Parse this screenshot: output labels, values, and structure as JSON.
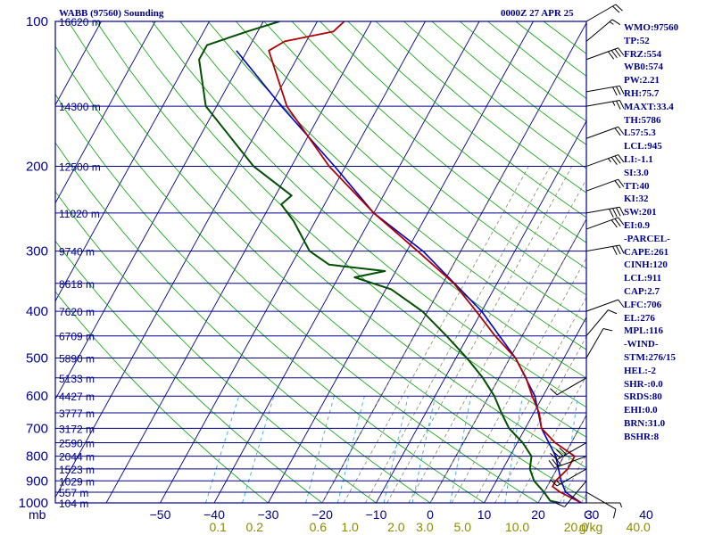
{
  "header": {
    "station_title": "WABB (97560) Sounding",
    "timestamp": "0000Z 27 APR 25"
  },
  "indices": [
    "WMO:97560",
    "TP:52",
    "FRZ:554",
    "WB0:574",
    "PW:2.21",
    "RH:75.7",
    "MAXT:33.4",
    "TH:5786",
    "L57:5.3",
    "LCL:945",
    "LI:-1.1",
    "SI:3.0",
    "TT:40",
    "KI:32",
    "SW:201",
    "EI:0.9",
    "-PARCEL-",
    "CAPE:261",
    "CINH:120",
    "LCL:911",
    "CAP:2.7",
    "LFC:706",
    "EL:276",
    "MPL:116",
    "-WIND-",
    "STM:276/15",
    "HEL:-2",
    "SHR-:0.0",
    "SRDS:80",
    "EHI:0.0",
    "BRN:31.0",
    "BSHR:8"
  ],
  "colors": {
    "frame": "#00008b",
    "isobar": "#00008b",
    "isotherm": "#00008b",
    "dry_adiabat": "#00a000",
    "moist_adiabat": "#888866",
    "mixing_ratio": "#33aadd",
    "temperature": "#b00000",
    "dewpoint": "#005000",
    "parcel": "#0000c8",
    "mixing_ratio_labels": "#8b8b00",
    "label": "#00008b"
  },
  "chart_data": {
    "type": "skew-t log-p",
    "pressure_unit": "mb",
    "mixing_ratio_unit": "g/kg",
    "pressure_levels": [
      100,
      150,
      200,
      250,
      300,
      350,
      400,
      450,
      500,
      550,
      600,
      650,
      700,
      750,
      800,
      850,
      900,
      950,
      1000
    ],
    "pressure_tick_labels": [
      "100",
      "200",
      "300",
      "400",
      "500",
      "600",
      "700",
      "800",
      "900",
      "1000"
    ],
    "height_labels": [
      {
        "p": 100,
        "label": "16620 m"
      },
      {
        "p": 150,
        "label": "14300 m"
      },
      {
        "p": 200,
        "label": "12500 m"
      },
      {
        "p": 250,
        "label": "11020 m"
      },
      {
        "p": 300,
        "label": "9740 m"
      },
      {
        "p": 350,
        "label": "8618 m"
      },
      {
        "p": 400,
        "label": "7620 m"
      },
      {
        "p": 450,
        "label": "6709 m"
      },
      {
        "p": 500,
        "label": "5890 m"
      },
      {
        "p": 550,
        "label": "5133 m"
      },
      {
        "p": 600,
        "label": "4427 m"
      },
      {
        "p": 650,
        "label": "3777 m"
      },
      {
        "p": 700,
        "label": "3172 m"
      },
      {
        "p": 750,
        "label": "2590 m"
      },
      {
        "p": 800,
        "label": "2044 m"
      },
      {
        "p": 850,
        "label": "1523 m"
      },
      {
        "p": 900,
        "label": "1029 m"
      },
      {
        "p": 950,
        "label": "557 m"
      },
      {
        "p": 1000,
        "label": "104 m"
      }
    ],
    "temperature_ticks": [
      -50,
      -40,
      -30,
      -20,
      -10,
      0,
      10,
      20,
      30,
      40
    ],
    "temperature_tick_labels": [
      "−50",
      "−40",
      "−30",
      "−20",
      "−10",
      "0",
      "10",
      "20",
      "30",
      "40"
    ],
    "temperature_axis_end": "C",
    "xlim": [
      -50,
      40
    ],
    "pressure_range": [
      100,
      1000
    ],
    "mixing_ratio_ticks": [
      0.1,
      0.2,
      0.6,
      1.0,
      2.0,
      3.0,
      5.0,
      10.0,
      20.0,
      40.0
    ],
    "mixing_ratio_tick_labels": [
      "0.1",
      "0.2",
      "0.6",
      "1.0",
      "2.0",
      "3.0",
      "5.0",
      "10.0",
      "20.0",
      "40.0"
    ],
    "temperature_profile": [
      [
        1000,
        28
      ],
      [
        950,
        23
      ],
      [
        925,
        21
      ],
      [
        900,
        21
      ],
      [
        850,
        22
      ],
      [
        800,
        22
      ],
      [
        750,
        17
      ],
      [
        700,
        13
      ],
      [
        650,
        11
      ],
      [
        600,
        8
      ],
      [
        550,
        5
      ],
      [
        500,
        1
      ],
      [
        450,
        -5
      ],
      [
        400,
        -11
      ],
      [
        350,
        -18
      ],
      [
        300,
        -28
      ],
      [
        250,
        -40
      ],
      [
        200,
        -53
      ],
      [
        150,
        -67
      ],
      [
        115,
        -76
      ],
      [
        110,
        -74
      ],
      [
        105,
        -66
      ],
      [
        100,
        -65
      ]
    ],
    "dewpoint_profile": [
      [
        1000,
        24
      ],
      [
        990,
        22
      ],
      [
        950,
        20
      ],
      [
        900,
        17
      ],
      [
        850,
        15
      ],
      [
        800,
        14
      ],
      [
        750,
        11
      ],
      [
        700,
        7
      ],
      [
        650,
        4
      ],
      [
        600,
        1
      ],
      [
        550,
        -3
      ],
      [
        500,
        -8
      ],
      [
        450,
        -14
      ],
      [
        400,
        -21
      ],
      [
        360,
        -29
      ],
      [
        340,
        -37
      ],
      [
        330,
        -32
      ],
      [
        320,
        -43
      ],
      [
        300,
        -48
      ],
      [
        260,
        -54
      ],
      [
        240,
        -58
      ],
      [
        230,
        -57
      ],
      [
        200,
        -67
      ],
      [
        150,
        -82
      ],
      [
        120,
        -88
      ],
      [
        112,
        -88
      ],
      [
        105,
        -82
      ],
      [
        100,
        -77
      ]
    ],
    "parcel_profile": [
      [
        1000,
        28
      ],
      [
        950,
        24
      ],
      [
        900,
        22
      ],
      [
        800,
        18.5
      ],
      [
        700,
        13
      ],
      [
        600,
        8.5
      ],
      [
        500,
        1
      ],
      [
        400,
        -10
      ],
      [
        300,
        -27
      ],
      [
        250,
        -40
      ],
      [
        200,
        -52
      ],
      [
        150,
        -68
      ],
      [
        115,
        -82
      ]
    ],
    "wind_barbs": [
      {
        "p": 100,
        "dir": 60,
        "spd": 20
      },
      {
        "p": 110,
        "dir": 50,
        "spd": 15
      },
      {
        "p": 120,
        "dir": 70,
        "spd": 40
      },
      {
        "p": 140,
        "dir": 80,
        "spd": 30
      },
      {
        "p": 150,
        "dir": 80,
        "spd": 25
      },
      {
        "p": 175,
        "dir": 70,
        "spd": 20
      },
      {
        "p": 200,
        "dir": 70,
        "spd": 35
      },
      {
        "p": 225,
        "dir": 70,
        "spd": 20
      },
      {
        "p": 250,
        "dir": 80,
        "spd": 40
      },
      {
        "p": 270,
        "dir": 70,
        "spd": 30
      },
      {
        "p": 300,
        "dir": 80,
        "spd": 30
      },
      {
        "p": 400,
        "dir": 70,
        "spd": 10
      },
      {
        "p": 450,
        "dir": 40,
        "spd": 10
      },
      {
        "p": 500,
        "dir": 30,
        "spd": 10
      },
      {
        "p": 550,
        "dir": 240,
        "spd": 10
      },
      {
        "p": 750,
        "dir": 240,
        "spd": 40
      },
      {
        "p": 800,
        "dir": 250,
        "spd": 30
      },
      {
        "p": 850,
        "dir": 240,
        "spd": 15
      },
      {
        "p": 900,
        "dir": 220,
        "spd": 10
      },
      {
        "p": 950,
        "dir": 120,
        "spd": 10
      },
      {
        "p": 1000,
        "dir": 90,
        "spd": 5
      }
    ]
  }
}
